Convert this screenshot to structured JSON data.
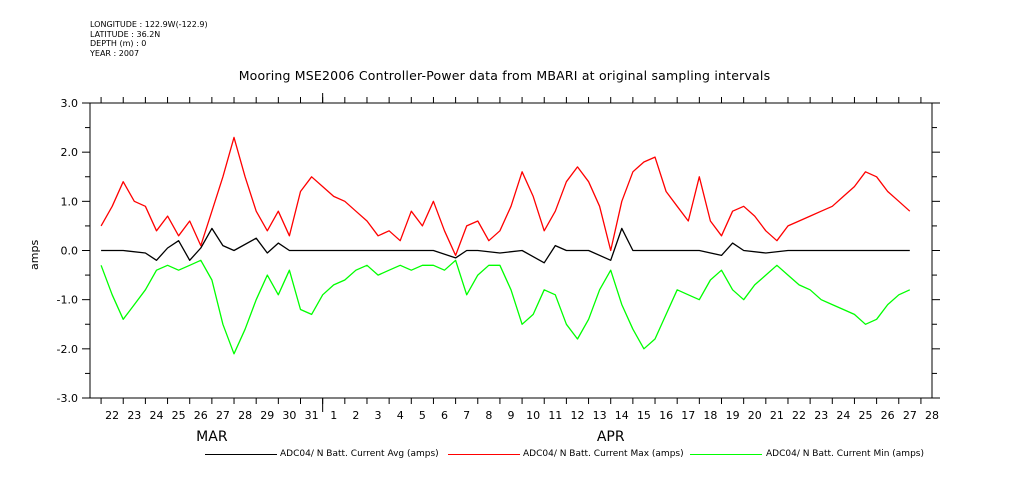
{
  "meta": {
    "longitude": "LONGITUDE : 122.9W(-122.9)",
    "latitude": "LATITUDE : 36.2N",
    "depth": "DEPTH (m) : 0",
    "year": "YEAR : 2007"
  },
  "chart_data": {
    "type": "line",
    "title": "Mooring MSE2006 Controller-Power data from MBARI at original sampling intervals",
    "ylabel": "amps",
    "xlabel": "",
    "ylim": [
      -3.0,
      3.0
    ],
    "yticks": [
      "3.0",
      "2.0",
      "1.0",
      "0.0",
      "-1.0",
      "-2.0",
      "-3.0"
    ],
    "ytick_values": [
      3.0,
      2.0,
      1.0,
      0.0,
      -1.0,
      -2.0,
      -3.0
    ],
    "xlim": [
      "2007-03-21T12:00",
      "2007-04-28T12:00"
    ],
    "xticks": [
      "22",
      "23",
      "24",
      "25",
      "26",
      "27",
      "28",
      "29",
      "30",
      "31",
      "1",
      "2",
      "3",
      "4",
      "5",
      "6",
      "7",
      "8",
      "9",
      "10",
      "11",
      "12",
      "13",
      "14",
      "15",
      "16",
      "17",
      "18",
      "19",
      "20",
      "21",
      "22",
      "23",
      "24",
      "25",
      "26",
      "27",
      "28"
    ],
    "month_labels": [
      {
        "label": "MAR",
        "at": "2007-03-27"
      },
      {
        "label": "APR",
        "at": "2007-04-14"
      }
    ],
    "grid": false,
    "legend_position": "bottom",
    "series": [
      {
        "name": "ADC04/ N Batt. Current Avg (amps)",
        "color": "#000000",
        "x": [
          "2007-03-22",
          "2007-03-23",
          "2007-03-24",
          "2007-03-24T12:00",
          "2007-03-25",
          "2007-03-25T12:00",
          "2007-03-26",
          "2007-03-26T12:00",
          "2007-03-27",
          "2007-03-27T12:00",
          "2007-03-28",
          "2007-03-29",
          "2007-03-29T12:00",
          "2007-03-30",
          "2007-03-30T12:00",
          "2007-03-31",
          "2007-04-01",
          "2007-04-02",
          "2007-04-03",
          "2007-04-04",
          "2007-04-05",
          "2007-04-06",
          "2007-04-07",
          "2007-04-07T12:00",
          "2007-04-08",
          "2007-04-09",
          "2007-04-10",
          "2007-04-11",
          "2007-04-11T12:00",
          "2007-04-12",
          "2007-04-13",
          "2007-04-14",
          "2007-04-14T12:00",
          "2007-04-15",
          "2007-04-16",
          "2007-04-17",
          "2007-04-18",
          "2007-04-19",
          "2007-04-19T12:00",
          "2007-04-20",
          "2007-04-21",
          "2007-04-22",
          "2007-04-23",
          "2007-04-24",
          "2007-04-25",
          "2007-04-26",
          "2007-04-27",
          "2007-04-27T12:00"
        ],
        "y": [
          0.0,
          0.0,
          -0.05,
          -0.2,
          0.05,
          0.2,
          -0.2,
          0.05,
          0.45,
          0.1,
          0.0,
          0.25,
          -0.05,
          0.15,
          0.0,
          0.0,
          0.0,
          0.0,
          0.0,
          0.0,
          0.0,
          0.0,
          -0.15,
          0.0,
          0.0,
          -0.05,
          0.0,
          -0.25,
          0.1,
          0.0,
          0.0,
          -0.2,
          0.45,
          0.0,
          0.0,
          0.0,
          0.0,
          -0.1,
          0.15,
          0.0,
          -0.05,
          0.0,
          0.0,
          0.0,
          0.0,
          0.0,
          0.0,
          0.0
        ]
      },
      {
        "name": "ADC04/ N Batt. Current Max (amps)",
        "color": "#ff0000",
        "x": [
          "2007-03-22",
          "2007-03-22T12:00",
          "2007-03-23",
          "2007-03-23T12:00",
          "2007-03-24",
          "2007-03-24T12:00",
          "2007-03-25",
          "2007-03-25T12:00",
          "2007-03-26",
          "2007-03-26T12:00",
          "2007-03-27",
          "2007-03-27T12:00",
          "2007-03-28",
          "2007-03-28T12:00",
          "2007-03-29",
          "2007-03-29T12:00",
          "2007-03-30",
          "2007-03-30T12:00",
          "2007-03-31",
          "2007-03-31T12:00",
          "2007-04-01",
          "2007-04-01T12:00",
          "2007-04-02",
          "2007-04-02T12:00",
          "2007-04-03",
          "2007-04-03T12:00",
          "2007-04-04",
          "2007-04-04T12:00",
          "2007-04-05",
          "2007-04-05T12:00",
          "2007-04-06",
          "2007-04-06T12:00",
          "2007-04-07",
          "2007-04-07T12:00",
          "2007-04-08",
          "2007-04-08T12:00",
          "2007-04-09",
          "2007-04-09T12:00",
          "2007-04-10",
          "2007-04-10T12:00",
          "2007-04-11",
          "2007-04-11T12:00",
          "2007-04-12",
          "2007-04-12T12:00",
          "2007-04-13",
          "2007-04-13T12:00",
          "2007-04-14",
          "2007-04-14T12:00",
          "2007-04-15",
          "2007-04-15T12:00",
          "2007-04-16",
          "2007-04-16T12:00",
          "2007-04-17",
          "2007-04-17T12:00",
          "2007-04-18",
          "2007-04-18T12:00",
          "2007-04-19",
          "2007-04-19T12:00",
          "2007-04-20",
          "2007-04-20T12:00",
          "2007-04-21",
          "2007-04-21T12:00",
          "2007-04-22",
          "2007-04-22T12:00",
          "2007-04-23",
          "2007-04-23T12:00",
          "2007-04-24",
          "2007-04-24T12:00",
          "2007-04-25",
          "2007-04-25T12:00",
          "2007-04-26",
          "2007-04-26T12:00",
          "2007-04-27",
          "2007-04-27T12:00"
        ],
        "y": [
          0.5,
          0.9,
          1.4,
          1.0,
          0.9,
          0.4,
          0.7,
          0.3,
          0.6,
          0.1,
          0.8,
          1.5,
          2.3,
          1.5,
          0.8,
          0.4,
          0.8,
          0.3,
          1.2,
          1.5,
          1.3,
          1.1,
          1.0,
          0.8,
          0.6,
          0.3,
          0.4,
          0.2,
          0.8,
          0.5,
          1.0,
          0.4,
          -0.1,
          0.5,
          0.6,
          0.2,
          0.4,
          0.9,
          1.6,
          1.1,
          0.4,
          0.8,
          1.4,
          1.7,
          1.4,
          0.9,
          0.0,
          1.0,
          1.6,
          1.8,
          1.9,
          1.2,
          0.9,
          0.6,
          1.5,
          0.6,
          0.3,
          0.8,
          0.9,
          0.7,
          0.4,
          0.2,
          0.5,
          0.6,
          0.7,
          0.8,
          0.9,
          1.1,
          1.3,
          1.6,
          1.5,
          1.2,
          1.0,
          0.8
        ]
      },
      {
        "name": "ADC04/ N Batt. Current Min (amps)",
        "color": "#00ff00",
        "x": [
          "2007-03-22",
          "2007-03-22T12:00",
          "2007-03-23",
          "2007-03-23T12:00",
          "2007-03-24",
          "2007-03-24T12:00",
          "2007-03-25",
          "2007-03-25T12:00",
          "2007-03-26",
          "2007-03-26T12:00",
          "2007-03-27",
          "2007-03-27T12:00",
          "2007-03-28",
          "2007-03-28T12:00",
          "2007-03-29",
          "2007-03-29T12:00",
          "2007-03-30",
          "2007-03-30T12:00",
          "2007-03-31",
          "2007-03-31T12:00",
          "2007-04-01",
          "2007-04-01T12:00",
          "2007-04-02",
          "2007-04-02T12:00",
          "2007-04-03",
          "2007-04-03T12:00",
          "2007-04-04",
          "2007-04-04T12:00",
          "2007-04-05",
          "2007-04-05T12:00",
          "2007-04-06",
          "2007-04-06T12:00",
          "2007-04-07",
          "2007-04-07T12:00",
          "2007-04-08",
          "2007-04-08T12:00",
          "2007-04-09",
          "2007-04-09T12:00",
          "2007-04-10",
          "2007-04-10T12:00",
          "2007-04-11",
          "2007-04-11T12:00",
          "2007-04-12",
          "2007-04-12T12:00",
          "2007-04-13",
          "2007-04-13T12:00",
          "2007-04-14",
          "2007-04-14T12:00",
          "2007-04-15",
          "2007-04-15T12:00",
          "2007-04-16",
          "2007-04-16T12:00",
          "2007-04-17",
          "2007-04-17T12:00",
          "2007-04-18",
          "2007-04-18T12:00",
          "2007-04-19",
          "2007-04-19T12:00",
          "2007-04-20",
          "2007-04-20T12:00",
          "2007-04-21",
          "2007-04-21T12:00",
          "2007-04-22",
          "2007-04-22T12:00",
          "2007-04-23",
          "2007-04-23T12:00",
          "2007-04-24",
          "2007-04-24T12:00",
          "2007-04-25",
          "2007-04-25T12:00",
          "2007-04-26",
          "2007-04-26T12:00",
          "2007-04-27",
          "2007-04-27T12:00"
        ],
        "y": [
          -0.3,
          -0.9,
          -1.4,
          -1.1,
          -0.8,
          -0.4,
          -0.3,
          -0.4,
          -0.3,
          -0.2,
          -0.6,
          -1.5,
          -2.1,
          -1.6,
          -1.0,
          -0.5,
          -0.9,
          -0.4,
          -1.2,
          -1.3,
          -0.9,
          -0.7,
          -0.6,
          -0.4,
          -0.3,
          -0.5,
          -0.4,
          -0.3,
          -0.4,
          -0.3,
          -0.3,
          -0.4,
          -0.2,
          -0.9,
          -0.5,
          -0.3,
          -0.3,
          -0.8,
          -1.5,
          -1.3,
          -0.8,
          -0.9,
          -1.5,
          -1.8,
          -1.4,
          -0.8,
          -0.4,
          -1.1,
          -1.6,
          -2.0,
          -1.8,
          -1.3,
          -0.8,
          -0.9,
          -1.0,
          -0.6,
          -0.4,
          -0.8,
          -1.0,
          -0.7,
          -0.5,
          -0.3,
          -0.5,
          -0.7,
          -0.8,
          -1.0,
          -1.1,
          -1.2,
          -1.3,
          -1.5,
          -1.4,
          -1.1,
          -0.9,
          -0.8
        ]
      }
    ]
  }
}
